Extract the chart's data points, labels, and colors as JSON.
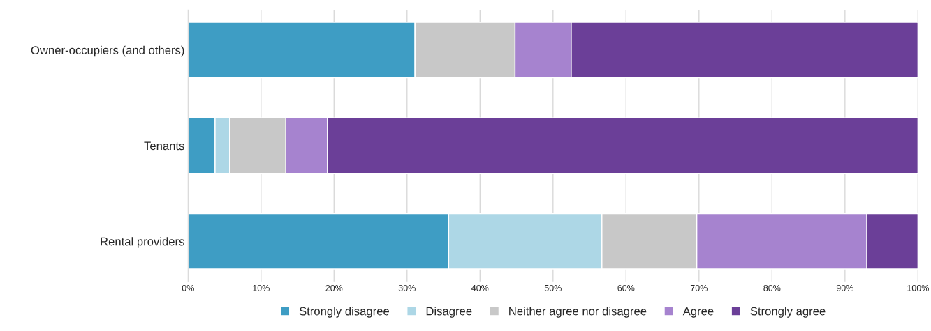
{
  "chart_data": {
    "type": "bar",
    "orientation": "horizontal",
    "stacked": true,
    "categories": [
      "Owner-occupiers (and others)",
      "Tenants",
      "Rental providers"
    ],
    "series": [
      {
        "name": "Strongly disagree",
        "color": "#3e9dc4",
        "values": [
          31.1,
          3.7,
          35.7
        ]
      },
      {
        "name": "Disagree",
        "color": "#add7e6",
        "values": [
          0,
          2.0,
          21.0
        ]
      },
      {
        "name": "Neither agree nor disagree",
        "color": "#c8c8c8",
        "values": [
          13.7,
          7.7,
          13.0
        ]
      },
      {
        "name": "Agree",
        "color": "#a683cf",
        "values": [
          7.7,
          5.7,
          23.3
        ]
      },
      {
        "name": "Strongly agree",
        "color": "#6b3f98",
        "values": [
          47.5,
          80.9,
          7.0
        ]
      }
    ],
    "xlim": [
      0,
      100
    ],
    "xticks": [
      {
        "value": 0,
        "label": "0%"
      },
      {
        "value": 10,
        "label": "10%"
      },
      {
        "value": 20,
        "label": "20%"
      },
      {
        "value": 30,
        "label": "30%"
      },
      {
        "value": 40,
        "label": "40%"
      },
      {
        "value": 50,
        "label": "50%"
      },
      {
        "value": 60,
        "label": "60%"
      },
      {
        "value": 70,
        "label": "70%"
      },
      {
        "value": 80,
        "label": "80%"
      },
      {
        "value": 90,
        "label": "90%"
      },
      {
        "value": 100,
        "label": "100%"
      }
    ],
    "grid": "x",
    "legend": "bottom"
  }
}
